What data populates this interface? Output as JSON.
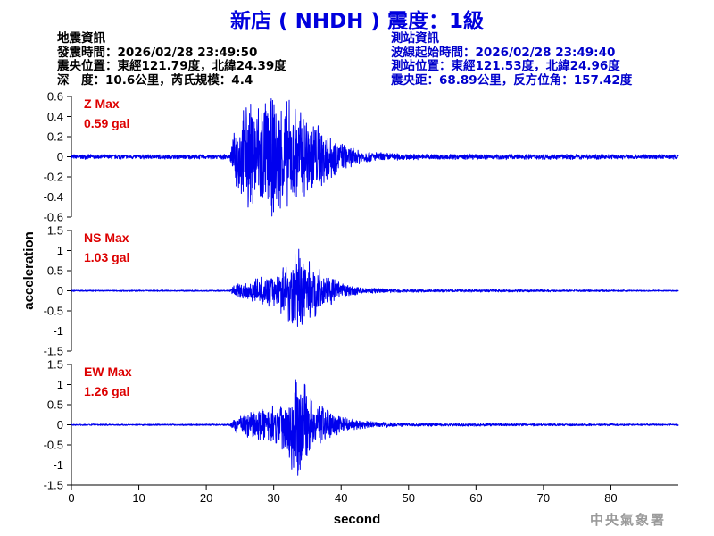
{
  "title": "新店 ( NHDH ) 震度：1級",
  "quake_info": {
    "heading": "地震資訊",
    "origin_time": "發震時間：2026/02/28 23:49:50",
    "epicenter": "震央位置：東經121.79度，北緯24.39度",
    "depth_magnitude": "深　度：10.6公里，芮氏規模：4.4"
  },
  "station_info": {
    "heading": "測站資訊",
    "wave_start": "波線起始時間：2026/02/28 23:49:40",
    "location": "測站位置：東經121.53度，北緯24.96度",
    "distance": "震央距：68.89公里，反方位角：157.42度"
  },
  "watermark": "中央氣象署",
  "chart_data": {
    "type": "line",
    "xlabel": "second",
    "ylabel": "acceleration",
    "xlim": [
      0,
      90
    ],
    "xticks": [
      0,
      10,
      20,
      30,
      40,
      50,
      60,
      70,
      80
    ],
    "line_color": "#0000ee",
    "label_color": "#dd0000",
    "panels": [
      {
        "component": "Z",
        "label": "Z Max",
        "max_text": "0.59 gal",
        "max_abs": 0.59,
        "ylim": [
          -0.6,
          0.6
        ],
        "yticks": [
          0.6,
          0.4,
          0.2,
          0,
          -0.2,
          -0.4,
          -0.6
        ],
        "envelope": [
          [
            0,
            0.02
          ],
          [
            23.5,
            0.02
          ],
          [
            24.5,
            0.3
          ],
          [
            26,
            0.45
          ],
          [
            28,
            0.5
          ],
          [
            30,
            0.5
          ],
          [
            32,
            0.48
          ],
          [
            34,
            0.42
          ],
          [
            36,
            0.33
          ],
          [
            38,
            0.22
          ],
          [
            40,
            0.12
          ],
          [
            42,
            0.07
          ],
          [
            45,
            0.04
          ],
          [
            50,
            0.025
          ],
          [
            90,
            0.02
          ]
        ]
      },
      {
        "component": "NS",
        "label": "NS Max",
        "max_text": "1.03 gal",
        "max_abs": 1.03,
        "ylim": [
          -1.5,
          1.5
        ],
        "yticks": [
          1.5,
          1,
          0.5,
          0,
          -0.5,
          -1,
          -1.5
        ],
        "envelope": [
          [
            0,
            0.015
          ],
          [
            23.5,
            0.015
          ],
          [
            24.5,
            0.15
          ],
          [
            27,
            0.22
          ],
          [
            30,
            0.3
          ],
          [
            32,
            0.55
          ],
          [
            33,
            0.9
          ],
          [
            34,
            0.7
          ],
          [
            36,
            0.5
          ],
          [
            38,
            0.3
          ],
          [
            40,
            0.15
          ],
          [
            43,
            0.06
          ],
          [
            50,
            0.03
          ],
          [
            90,
            0.015
          ]
        ]
      },
      {
        "component": "EW",
        "label": "EW Max",
        "max_text": "1.26 gal",
        "max_abs": 1.26,
        "ylim": [
          -1.5,
          1.5
        ],
        "yticks": [
          1.5,
          1,
          0.5,
          0,
          -0.5,
          -1,
          -1.5
        ],
        "envelope": [
          [
            0,
            0.015
          ],
          [
            23.5,
            0.015
          ],
          [
            24.5,
            0.15
          ],
          [
            27,
            0.28
          ],
          [
            30,
            0.35
          ],
          [
            32,
            0.6
          ],
          [
            33,
            0.95
          ],
          [
            34.5,
            0.8
          ],
          [
            36,
            0.5
          ],
          [
            38,
            0.3
          ],
          [
            40,
            0.15
          ],
          [
            43,
            0.07
          ],
          [
            50,
            0.03
          ],
          [
            90,
            0.015
          ]
        ]
      }
    ]
  }
}
